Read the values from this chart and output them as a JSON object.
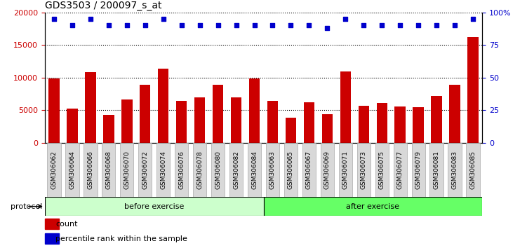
{
  "title": "GDS3503 / 200097_s_at",
  "categories": [
    "GSM306062",
    "GSM306064",
    "GSM306066",
    "GSM306068",
    "GSM306070",
    "GSM306072",
    "GSM306074",
    "GSM306076",
    "GSM306078",
    "GSM306080",
    "GSM306082",
    "GSM306084",
    "GSM306063",
    "GSM306065",
    "GSM306067",
    "GSM306069",
    "GSM306071",
    "GSM306073",
    "GSM306075",
    "GSM306077",
    "GSM306079",
    "GSM306081",
    "GSM306083",
    "GSM306085"
  ],
  "bar_values": [
    9900,
    5200,
    10800,
    4300,
    6600,
    8900,
    11400,
    6400,
    6900,
    8900,
    6900,
    9800,
    6400,
    3800,
    6200,
    4400,
    10900,
    5700,
    6100,
    5600,
    5400,
    7200,
    8900,
    16200
  ],
  "percentile_values": [
    95,
    90,
    95,
    90,
    90,
    90,
    95,
    90,
    90,
    90,
    90,
    90,
    90,
    90,
    90,
    88,
    95,
    90,
    90,
    90,
    90,
    90,
    90,
    95
  ],
  "bar_color": "#cc0000",
  "dot_color": "#0000cc",
  "ylim_left": [
    0,
    20000
  ],
  "ylim_right": [
    0,
    100
  ],
  "yticks_left": [
    0,
    5000,
    10000,
    15000,
    20000
  ],
  "yticks_right": [
    0,
    25,
    50,
    75,
    100
  ],
  "group1_count": 12,
  "group1_label": "before exercise",
  "group2_label": "after exercise",
  "group1_color": "#ccffcc",
  "group2_color": "#66ff66",
  "protocol_label": "protocol",
  "legend_bar_label": "count",
  "legend_dot_label": "percentile rank within the sample",
  "title_fontsize": 10,
  "tick_fontsize": 8,
  "bg_color": "#d8d8d8"
}
